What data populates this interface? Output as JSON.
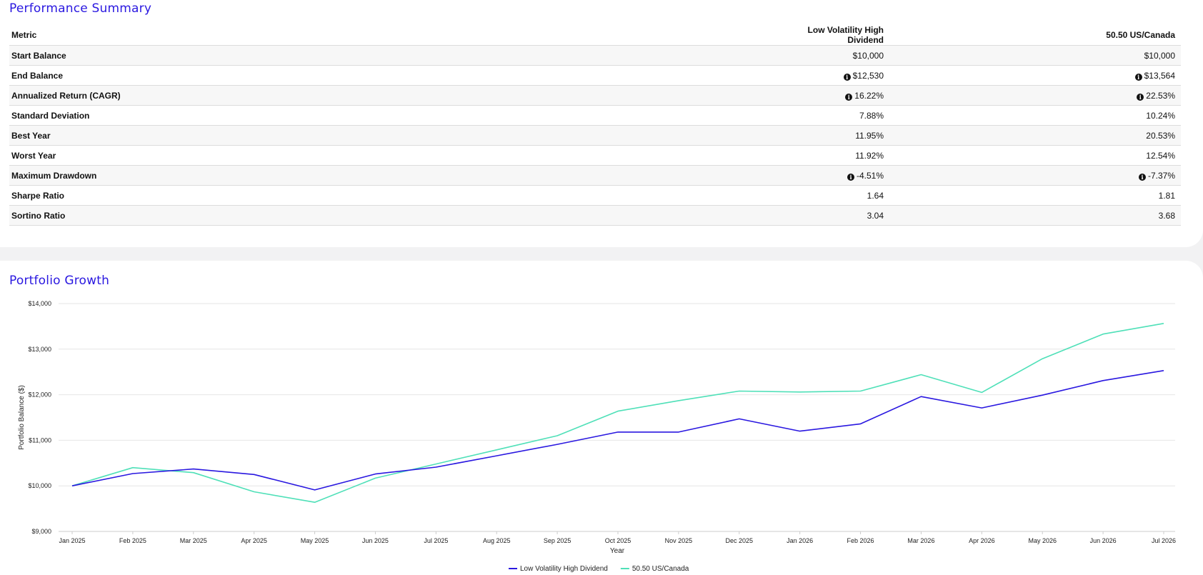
{
  "summary": {
    "title": "Performance Summary",
    "columns": [
      "Metric",
      "Low Volatility High Dividend",
      "50.50 US/Canada"
    ],
    "rows": [
      {
        "metric": "Start Balance",
        "a": "$10,000",
        "b": "$10,000",
        "info": false
      },
      {
        "metric": "End Balance",
        "a": "$12,530",
        "b": "$13,564",
        "info": true
      },
      {
        "metric": "Annualized Return (CAGR)",
        "a": "16.22%",
        "b": "22.53%",
        "info": true
      },
      {
        "metric": "Standard Deviation",
        "a": "7.88%",
        "b": "10.24%",
        "info": false
      },
      {
        "metric": "Best Year",
        "a": "11.95%",
        "b": "20.53%",
        "info": false
      },
      {
        "metric": "Worst Year",
        "a": "11.92%",
        "b": "12.54%",
        "info": false
      },
      {
        "metric": "Maximum Drawdown",
        "a": "-4.51%",
        "b": "-7.37%",
        "info": true
      },
      {
        "metric": "Sharpe Ratio",
        "a": "1.64",
        "b": "1.81",
        "info": false
      },
      {
        "metric": "Sortino Ratio",
        "a": "3.04",
        "b": "3.68",
        "info": false
      }
    ],
    "info_icon": "info-circle-icon"
  },
  "growth": {
    "title": "Portfolio Growth"
  },
  "chart_data": {
    "type": "line",
    "title": "",
    "xlabel": "Year",
    "ylabel": "Portfolio Balance ($)",
    "categories": [
      "Jan 2025",
      "Feb 2025",
      "Mar 2025",
      "Apr 2025",
      "May 2025",
      "Jun 2025",
      "Jul 2025",
      "Aug 2025",
      "Sep 2025",
      "Oct 2025",
      "Nov 2025",
      "Dec 2025",
      "Jan 2026",
      "Feb 2026",
      "Mar 2026",
      "Apr 2026",
      "May 2026",
      "Jun 2026",
      "Jul 2026"
    ],
    "ylim": [
      9000,
      14000
    ],
    "yticks": [
      9000,
      10000,
      11000,
      12000,
      13000,
      14000
    ],
    "ytick_labels": [
      "$9,000",
      "$10,000",
      "$11,000",
      "$12,000",
      "$13,000",
      "$14,000"
    ],
    "grid": true,
    "legend_position": "bottom-center",
    "series": [
      {
        "name": "Low Volatility High Dividend",
        "color": "#2a18e0",
        "values": [
          10000,
          10270,
          10370,
          10250,
          9910,
          10260,
          10410,
          10660,
          10910,
          11180,
          11180,
          11470,
          11200,
          11360,
          11960,
          11710,
          11990,
          12310,
          12530
        ]
      },
      {
        "name": "50.50 US/Canada",
        "color": "#4fe0b8",
        "values": [
          10000,
          10400,
          10290,
          9870,
          9640,
          10170,
          10480,
          10790,
          11100,
          11640,
          11870,
          12080,
          12060,
          12080,
          12440,
          12050,
          12790,
          13330,
          13564
        ]
      }
    ]
  }
}
